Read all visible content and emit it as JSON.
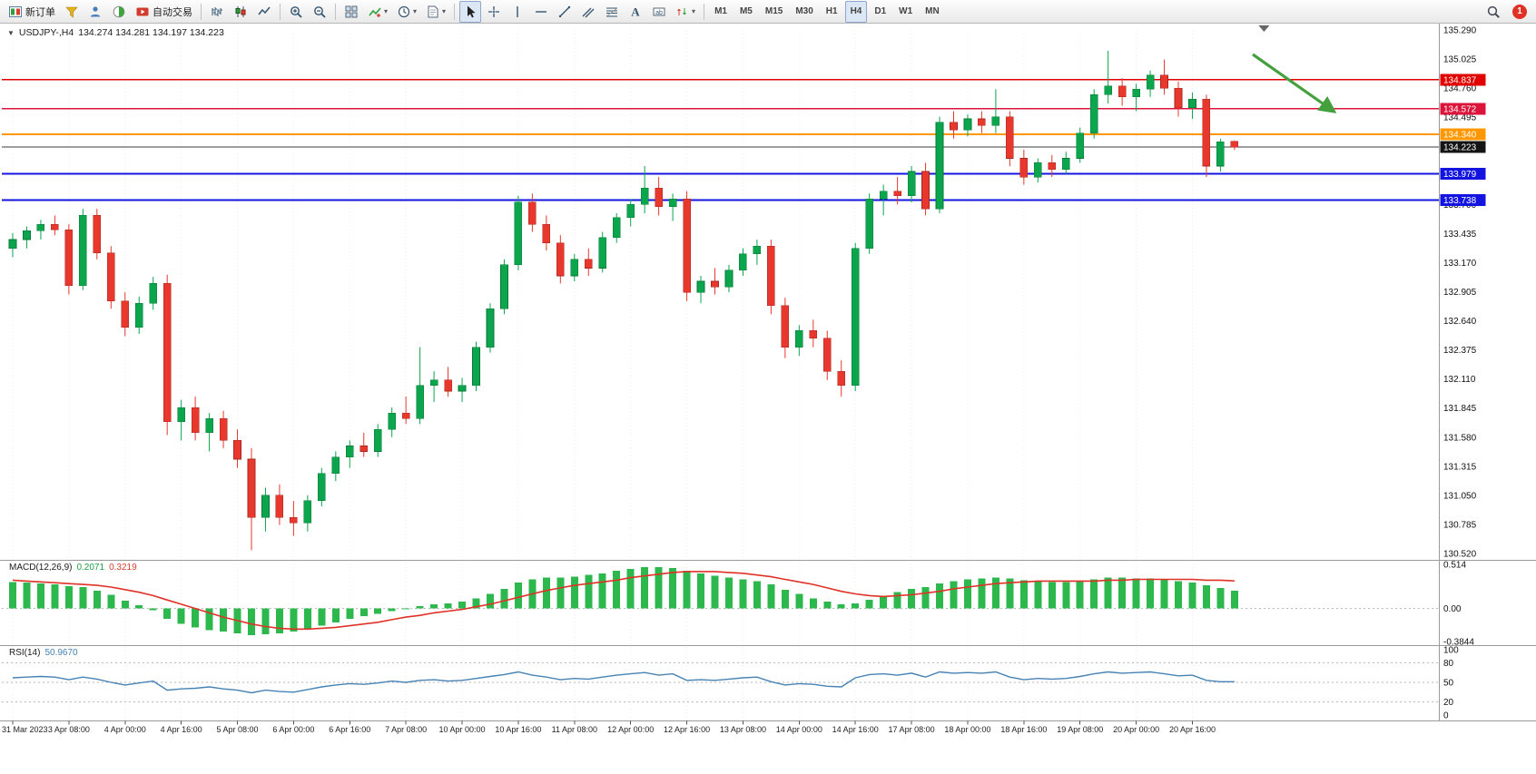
{
  "icons": {
    "one_click_toggle": "▼",
    "dropdown_caret": "▾"
  },
  "toolbar": {
    "groups": [
      {
        "name": "trade-group",
        "items": [
          {
            "name": "new-order-button",
            "icon": "order-icon",
            "label": "新订单"
          },
          {
            "name": "metaeditor-button",
            "icon": "funnel-icon"
          },
          {
            "name": "community-button",
            "icon": "person-icon"
          },
          {
            "name": "market-button",
            "icon": "globe-icon"
          },
          {
            "name": "autotrading-button",
            "icon": "autotrading-icon",
            "label": "自动交易"
          }
        ]
      },
      {
        "name": "chart-type-group",
        "items": [
          {
            "name": "bar-chart-button",
            "icon": "bar-chart-icon"
          },
          {
            "name": "candlestick-button",
            "icon": "candlestick-icon"
          },
          {
            "name": "line-chart-button",
            "icon": "line-chart-icon"
          }
        ]
      },
      {
        "name": "zoom-group",
        "items": [
          {
            "name": "zoom-in-button",
            "icon": "zoom-in-icon"
          },
          {
            "name": "zoom-out-button",
            "icon": "zoom-out-icon"
          }
        ]
      },
      {
        "name": "window-group",
        "items": [
          {
            "name": "tile-windows-button",
            "icon": "tile-windows-icon"
          },
          {
            "name": "indicators-button",
            "icon": "indicators-icon",
            "dropdown": true
          },
          {
            "name": "periods-button",
            "icon": "clock-icon",
            "dropdown": true
          },
          {
            "name": "templates-button",
            "icon": "template-icon",
            "dropdown": true
          }
        ]
      },
      {
        "name": "objects-group",
        "items": [
          {
            "name": "cursor-button",
            "icon": "cursor-icon",
            "active": true
          },
          {
            "name": "crosshair-button",
            "icon": "crosshair-icon"
          },
          {
            "name": "vertical-line-button",
            "icon": "vertical-line-icon"
          },
          {
            "name": "horizontal-line-button",
            "icon": "horizontal-line-icon"
          },
          {
            "name": "trendline-button",
            "icon": "trendline-icon"
          },
          {
            "name": "equidistant-channel-button",
            "icon": "channel-icon"
          },
          {
            "name": "fibonacci-button",
            "icon": "fibonacci-icon"
          },
          {
            "name": "text-button",
            "icon": "text-icon"
          },
          {
            "name": "text-label-button",
            "icon": "label-icon"
          },
          {
            "name": "arrows-button",
            "icon": "arrow-objects-icon",
            "dropdown": true
          }
        ]
      },
      {
        "name": "timeframe-group",
        "items": [
          {
            "name": "timeframe-m1",
            "label": "M1"
          },
          {
            "name": "timeframe-m5",
            "label": "M5"
          },
          {
            "name": "timeframe-m15",
            "label": "M15"
          },
          {
            "name": "timeframe-m30",
            "label": "M30"
          },
          {
            "name": "timeframe-h1",
            "label": "H1"
          },
          {
            "name": "timeframe-h4",
            "label": "H4",
            "active": true
          },
          {
            "name": "timeframe-d1",
            "label": "D1"
          },
          {
            "name": "timeframe-w1",
            "label": "W1"
          },
          {
            "name": "timeframe-mn",
            "label": "MN"
          }
        ]
      }
    ],
    "right": {
      "search_name": "search-button",
      "notification_count": "1"
    }
  },
  "chart": {
    "header": {
      "symbol_period": "USDJPY-,H4",
      "ohlc_text": "134.274 134.281 134.197 134.223",
      "open": "134.274",
      "high": "134.281",
      "low": "134.197",
      "close": "134.223"
    },
    "macd": {
      "title": "MACD(12,26,9)",
      "main_value": "0.2071",
      "signal_value": "0.3219"
    },
    "rsi": {
      "title": "RSI(14)",
      "value": "50.9670"
    },
    "colors": {
      "up": "#0aa54c",
      "up_stroke": "#067a35",
      "down": "#e8372c",
      "down_stroke": "#a8271e",
      "macd_hist": "#2db84d",
      "macd_signal": "#e03127",
      "rsi_line": "#4682b4",
      "arrow": "#44a03c"
    }
  },
  "chart_data": {
    "type": "candlestick",
    "symbol": "USDJPY-",
    "timeframe": "H4",
    "title": "USDJPY-,H4",
    "ylim": [
      130.46,
      135.33
    ],
    "bars_per_tick": 4,
    "price_axis_labels": [
      "135.290",
      "135.025",
      "134.760",
      "134.495",
      "134.230",
      "133.965",
      "133.700",
      "133.435",
      "133.170",
      "132.905",
      "132.640",
      "132.375",
      "132.110",
      "131.845",
      "131.580",
      "131.315",
      "131.050",
      "130.785",
      "130.520"
    ],
    "time_axis_labels": [
      "31 Mar 2023",
      "3 Apr 08:00",
      "4 Apr 00:00",
      "4 Apr 16:00",
      "5 Apr 08:00",
      "6 Apr 00:00",
      "6 Apr 16:00",
      "7 Apr 08:00",
      "10 Apr 00:00",
      "10 Apr 16:00",
      "11 Apr 08:00",
      "12 Apr 00:00",
      "12 Apr 16:00",
      "13 Apr 08:00",
      "14 Apr 00:00",
      "14 Apr 16:00",
      "17 Apr 08:00",
      "18 Apr 00:00",
      "18 Apr 16:00",
      "19 Apr 08:00",
      "20 Apr 00:00",
      "20 Apr 16:00"
    ],
    "candles": [
      [
        133.3,
        133.44,
        133.22,
        133.38
      ],
      [
        133.38,
        133.5,
        133.3,
        133.46
      ],
      [
        133.46,
        133.56,
        133.38,
        133.52
      ],
      [
        133.52,
        133.6,
        133.42,
        133.47
      ],
      [
        133.47,
        133.52,
        132.88,
        132.96
      ],
      [
        132.96,
        133.66,
        132.92,
        133.6
      ],
      [
        133.6,
        133.66,
        133.2,
        133.26
      ],
      [
        133.26,
        133.32,
        132.75,
        132.82
      ],
      [
        132.82,
        132.9,
        132.5,
        132.58
      ],
      [
        132.58,
        132.86,
        132.52,
        132.8
      ],
      [
        132.8,
        133.04,
        132.74,
        132.98
      ],
      [
        132.98,
        133.06,
        131.6,
        131.72
      ],
      [
        131.72,
        131.92,
        131.55,
        131.85
      ],
      [
        131.85,
        131.95,
        131.55,
        131.62
      ],
      [
        131.62,
        131.8,
        131.45,
        131.75
      ],
      [
        131.75,
        131.82,
        131.48,
        131.55
      ],
      [
        131.55,
        131.65,
        131.3,
        131.38
      ],
      [
        131.38,
        131.48,
        130.55,
        130.85
      ],
      [
        130.85,
        131.12,
        130.72,
        131.05
      ],
      [
        131.05,
        131.15,
        130.78,
        130.85
      ],
      [
        130.85,
        131.0,
        130.68,
        130.8
      ],
      [
        130.8,
        131.05,
        130.72,
        131.0
      ],
      [
        131.0,
        131.3,
        130.95,
        131.25
      ],
      [
        131.25,
        131.45,
        131.18,
        131.4
      ],
      [
        131.4,
        131.55,
        131.3,
        131.5
      ],
      [
        131.5,
        131.62,
        131.4,
        131.45
      ],
      [
        131.45,
        131.7,
        131.4,
        131.65
      ],
      [
        131.65,
        131.85,
        131.58,
        131.8
      ],
      [
        131.8,
        131.95,
        131.7,
        131.75
      ],
      [
        131.75,
        132.4,
        131.7,
        132.05
      ],
      [
        132.05,
        132.18,
        131.9,
        132.1
      ],
      [
        132.1,
        132.22,
        131.95,
        132.0
      ],
      [
        132.0,
        132.12,
        131.9,
        132.05
      ],
      [
        132.05,
        132.45,
        132.0,
        132.4
      ],
      [
        132.4,
        132.8,
        132.35,
        132.75
      ],
      [
        132.75,
        133.2,
        132.7,
        133.15
      ],
      [
        133.15,
        133.78,
        133.1,
        133.72
      ],
      [
        133.72,
        133.8,
        133.45,
        133.52
      ],
      [
        133.52,
        133.6,
        133.28,
        133.35
      ],
      [
        133.35,
        133.42,
        132.98,
        133.05
      ],
      [
        133.05,
        133.25,
        133.0,
        133.2
      ],
      [
        133.2,
        133.3,
        133.05,
        133.12
      ],
      [
        133.12,
        133.45,
        133.08,
        133.4
      ],
      [
        133.4,
        133.62,
        133.35,
        133.58
      ],
      [
        133.58,
        133.75,
        133.5,
        133.7
      ],
      [
        133.7,
        134.05,
        133.62,
        133.85
      ],
      [
        133.85,
        133.95,
        133.6,
        133.68
      ],
      [
        133.68,
        133.8,
        133.55,
        133.75
      ],
      [
        133.75,
        133.82,
        132.82,
        132.9
      ],
      [
        132.9,
        133.05,
        132.8,
        133.0
      ],
      [
        133.0,
        133.12,
        132.88,
        132.95
      ],
      [
        132.95,
        133.15,
        132.9,
        133.1
      ],
      [
        133.1,
        133.3,
        133.05,
        133.25
      ],
      [
        133.25,
        133.38,
        133.15,
        133.32
      ],
      [
        133.32,
        133.38,
        132.7,
        132.78
      ],
      [
        132.78,
        132.85,
        132.3,
        132.4
      ],
      [
        132.4,
        132.6,
        132.32,
        132.55
      ],
      [
        132.55,
        132.65,
        132.4,
        132.48
      ],
      [
        132.48,
        132.55,
        132.1,
        132.18
      ],
      [
        132.18,
        132.28,
        131.95,
        132.05
      ],
      [
        132.05,
        133.35,
        132.0,
        133.3
      ],
      [
        133.3,
        133.8,
        133.25,
        133.75
      ],
      [
        133.75,
        133.88,
        133.6,
        133.82
      ],
      [
        133.82,
        133.95,
        133.7,
        133.78
      ],
      [
        133.78,
        134.05,
        133.72,
        134.0
      ],
      [
        134.0,
        134.08,
        133.6,
        133.66
      ],
      [
        133.66,
        134.5,
        133.62,
        134.45
      ],
      [
        134.45,
        134.55,
        134.3,
        134.38
      ],
      [
        134.38,
        134.52,
        134.32,
        134.48
      ],
      [
        134.48,
        134.55,
        134.35,
        134.42
      ],
      [
        134.42,
        134.75,
        134.35,
        134.5
      ],
      [
        134.5,
        134.55,
        134.05,
        134.12
      ],
      [
        134.12,
        134.2,
        133.88,
        133.95
      ],
      [
        133.95,
        134.12,
        133.9,
        134.08
      ],
      [
        134.08,
        134.15,
        133.95,
        134.02
      ],
      [
        134.02,
        134.18,
        133.98,
        134.12
      ],
      [
        134.12,
        134.4,
        134.08,
        134.35
      ],
      [
        134.35,
        134.75,
        134.3,
        134.7
      ],
      [
        134.7,
        135.1,
        134.62,
        134.78
      ],
      [
        134.78,
        134.85,
        134.6,
        134.68
      ],
      [
        134.68,
        134.8,
        134.55,
        134.75
      ],
      [
        134.75,
        134.92,
        134.68,
        134.88
      ],
      [
        134.88,
        135.02,
        134.7,
        134.76
      ],
      [
        134.76,
        134.82,
        134.5,
        134.58
      ],
      [
        134.58,
        134.72,
        134.48,
        134.66
      ],
      [
        134.66,
        134.7,
        133.95,
        134.05
      ],
      [
        134.05,
        134.3,
        134.0,
        134.27
      ],
      [
        134.274,
        134.281,
        134.197,
        134.223
      ]
    ],
    "hlines": [
      {
        "price": 134.837,
        "label": "134.837",
        "color": "#e00000",
        "width": 1.4
      },
      {
        "price": 134.572,
        "label": "134.572",
        "color": "#dc143c",
        "width": 1.4
      },
      {
        "price": 134.34,
        "label": "134.340",
        "color": "#ff9800",
        "width": 2
      },
      {
        "price": 133.979,
        "label": "133.979",
        "color": "#1414e0",
        "width": 2
      },
      {
        "price": 133.738,
        "label": "133.738",
        "color": "#1414e0",
        "width": 2
      }
    ],
    "current_price": {
      "price": 134.223,
      "label": "134.223",
      "line_color": "#3c3c3c",
      "tag_color": "#141414"
    },
    "chart_shift_marker_bar": 89.1,
    "annotation_arrow": {
      "from_bar": 88.3,
      "from_price": 135.067,
      "to_bar": 94.1,
      "to_price": 134.546,
      "color": "#44a03c"
    },
    "indicators": [
      {
        "name": "MACD",
        "params": "12,26,9",
        "current_main": 0.2071,
        "current_signal": 0.3219,
        "range": [
          -0.3844,
          0.514
        ],
        "axis_labels": [
          "0.514",
          "0.00",
          "-0.3844"
        ],
        "histogram": [
          0.31,
          0.3,
          0.29,
          0.28,
          0.26,
          0.25,
          0.21,
          0.16,
          0.09,
          0.04,
          -0.02,
          -0.12,
          -0.18,
          -0.22,
          -0.25,
          -0.27,
          -0.29,
          -0.31,
          -0.3,
          -0.29,
          -0.27,
          -0.24,
          -0.2,
          -0.16,
          -0.12,
          -0.09,
          -0.06,
          -0.03,
          0.0,
          0.03,
          0.05,
          0.06,
          0.08,
          0.12,
          0.17,
          0.23,
          0.3,
          0.34,
          0.36,
          0.36,
          0.37,
          0.39,
          0.41,
          0.44,
          0.46,
          0.48,
          0.48,
          0.47,
          0.44,
          0.41,
          0.38,
          0.36,
          0.34,
          0.32,
          0.28,
          0.22,
          0.17,
          0.12,
          0.08,
          0.05,
          0.06,
          0.1,
          0.15,
          0.19,
          0.23,
          0.25,
          0.29,
          0.32,
          0.34,
          0.35,
          0.36,
          0.35,
          0.33,
          0.32,
          0.31,
          0.31,
          0.32,
          0.34,
          0.36,
          0.36,
          0.35,
          0.35,
          0.34,
          0.32,
          0.3,
          0.27,
          0.24,
          0.2071
        ],
        "signal": [
          0.33,
          0.32,
          0.31,
          0.3,
          0.29,
          0.28,
          0.27,
          0.25,
          0.22,
          0.19,
          0.15,
          0.1,
          0.05,
          0.0,
          -0.05,
          -0.1,
          -0.14,
          -0.18,
          -0.21,
          -0.23,
          -0.24,
          -0.24,
          -0.23,
          -0.22,
          -0.2,
          -0.18,
          -0.16,
          -0.13,
          -0.1,
          -0.08,
          -0.05,
          -0.03,
          -0.01,
          0.02,
          0.05,
          0.09,
          0.13,
          0.17,
          0.21,
          0.24,
          0.27,
          0.29,
          0.31,
          0.33,
          0.36,
          0.38,
          0.4,
          0.42,
          0.43,
          0.43,
          0.43,
          0.42,
          0.41,
          0.39,
          0.37,
          0.34,
          0.31,
          0.28,
          0.24,
          0.2,
          0.17,
          0.15,
          0.14,
          0.15,
          0.16,
          0.18,
          0.2,
          0.23,
          0.25,
          0.27,
          0.29,
          0.3,
          0.31,
          0.32,
          0.32,
          0.32,
          0.32,
          0.32,
          0.33,
          0.33,
          0.34,
          0.34,
          0.34,
          0.34,
          0.34,
          0.33,
          0.33,
          0.3219
        ]
      },
      {
        "name": "RSI",
        "params": "14",
        "current": 50.967,
        "range": [
          0,
          100
        ],
        "levels": [
          80,
          50,
          20
        ],
        "axis_labels": [
          "100",
          "80",
          "50",
          "20",
          "0"
        ],
        "values": [
          57,
          58,
          59,
          58,
          54,
          58,
          55,
          50,
          46,
          49,
          52,
          38,
          40,
          41,
          43,
          40,
          38,
          34,
          38,
          36,
          35,
          39,
          43,
          46,
          48,
          47,
          49,
          52,
          50,
          53,
          54,
          52,
          53,
          56,
          59,
          62,
          66,
          61,
          58,
          54,
          56,
          55,
          58,
          61,
          63,
          65,
          61,
          63,
          53,
          54,
          53,
          55,
          57,
          58,
          51,
          46,
          48,
          47,
          44,
          43,
          57,
          62,
          63,
          61,
          64,
          58,
          66,
          64,
          65,
          64,
          66,
          58,
          54,
          56,
          55,
          56,
          59,
          63,
          66,
          64,
          65,
          66,
          63,
          60,
          61,
          53,
          51,
          50.97
        ]
      }
    ]
  }
}
